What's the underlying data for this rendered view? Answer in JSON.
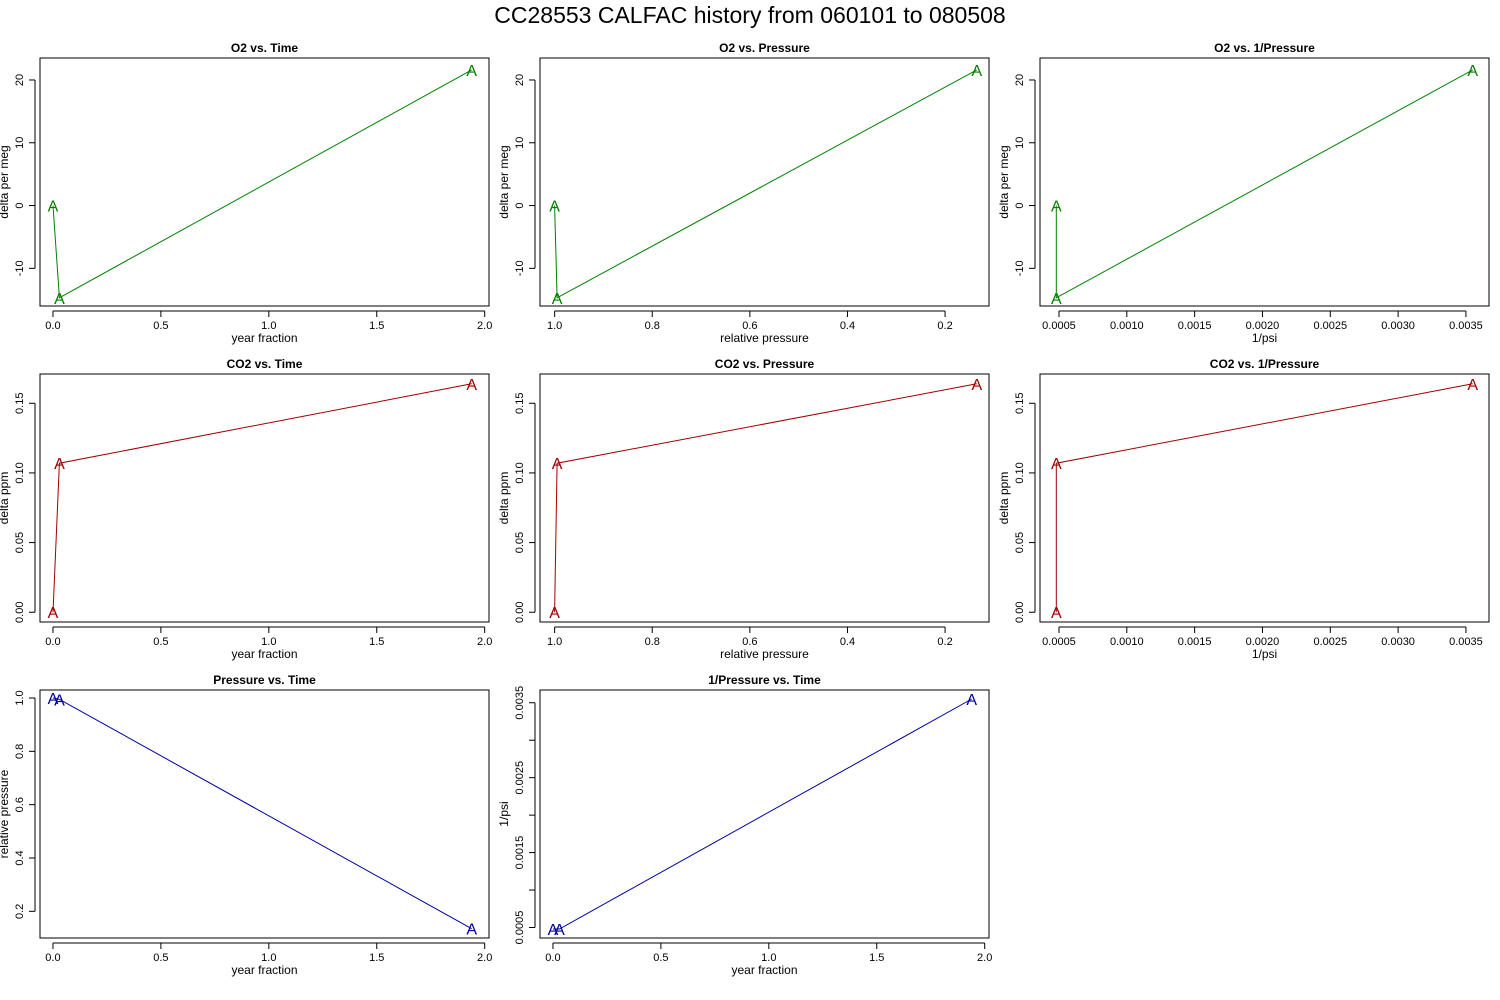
{
  "title": "CC28553   CALFAC history from  060101  to  080508",
  "colors": {
    "o2": "#008000",
    "co2": "#a00000",
    "pressure": "#0000a0",
    "axis": "#000000"
  },
  "marker_label": "A",
  "chart_data": [
    {
      "type": "line",
      "title": "O2 vs. Time",
      "xlabel": "year fraction",
      "ylabel": "delta per meg",
      "color_key": "o2",
      "x": [
        0.0,
        0.03,
        1.94
      ],
      "y": [
        0.0,
        -14.7,
        21.6
      ],
      "xlim": [
        -0.06,
        2.02
      ],
      "ylim": [
        -16,
        23.5
      ],
      "x_reversed": false,
      "xticks": [
        0.0,
        0.5,
        1.0,
        1.5,
        2.0
      ],
      "xtick_labels": [
        "0.0",
        "0.5",
        "1.0",
        "1.5",
        "2.0"
      ],
      "yticks": [
        -10,
        0,
        10,
        20
      ],
      "ytick_labels": [
        "-10",
        "0",
        "10",
        "20"
      ]
    },
    {
      "type": "line",
      "title": "O2 vs. Pressure",
      "xlabel": "relative pressure",
      "ylabel": "delta per meg",
      "color_key": "o2",
      "x": [
        1.0,
        0.995,
        0.135
      ],
      "y": [
        0.0,
        -14.7,
        21.6
      ],
      "xlim": [
        1.03,
        0.11
      ],
      "ylim": [
        -16,
        23.5
      ],
      "x_reversed": true,
      "xticks": [
        1.0,
        0.8,
        0.6,
        0.4,
        0.2
      ],
      "xtick_labels": [
        "1.0",
        "0.8",
        "0.6",
        "0.4",
        "0.2"
      ],
      "yticks": [
        -10,
        0,
        10,
        20
      ],
      "ytick_labels": [
        "-10",
        "0",
        "10",
        "20"
      ]
    },
    {
      "type": "line",
      "title": "O2 vs. 1/Pressure",
      "xlabel": "1/psi",
      "ylabel": "delta per meg",
      "color_key": "o2",
      "x": [
        0.00048,
        0.00048,
        0.00355
      ],
      "y": [
        0.0,
        -14.7,
        21.6
      ],
      "xlim": [
        0.00036,
        0.00367
      ],
      "ylim": [
        -16,
        23.5
      ],
      "x_reversed": false,
      "xticks": [
        0.0005,
        0.001,
        0.0015,
        0.002,
        0.0025,
        0.003,
        0.0035
      ],
      "xtick_labels": [
        "0.0005",
        "0.0010",
        "0.0015",
        "0.0020",
        "0.0025",
        "0.0030",
        "0.0035"
      ],
      "yticks": [
        -10,
        0,
        10,
        20
      ],
      "ytick_labels": [
        "-10",
        "0",
        "10",
        "20"
      ]
    },
    {
      "type": "line",
      "title": "CO2 vs. Time",
      "xlabel": "year fraction",
      "ylabel": "delta ppm",
      "color_key": "co2",
      "x": [
        0.0,
        0.03,
        1.94
      ],
      "y": [
        0.0,
        0.107,
        0.164
      ],
      "xlim": [
        -0.06,
        2.02
      ],
      "ylim": [
        -0.007,
        0.171
      ],
      "x_reversed": false,
      "xticks": [
        0.0,
        0.5,
        1.0,
        1.5,
        2.0
      ],
      "xtick_labels": [
        "0.0",
        "0.5",
        "1.0",
        "1.5",
        "2.0"
      ],
      "yticks": [
        0.0,
        0.05,
        0.1,
        0.15
      ],
      "ytick_labels": [
        "0.00",
        "0.05",
        "0.10",
        "0.15"
      ]
    },
    {
      "type": "line",
      "title": "CO2 vs. Pressure",
      "xlabel": "relative pressure",
      "ylabel": "delta ppm",
      "color_key": "co2",
      "x": [
        1.0,
        0.995,
        0.135
      ],
      "y": [
        0.0,
        0.107,
        0.164
      ],
      "xlim": [
        1.03,
        0.11
      ],
      "ylim": [
        -0.007,
        0.171
      ],
      "x_reversed": true,
      "xticks": [
        1.0,
        0.8,
        0.6,
        0.4,
        0.2
      ],
      "xtick_labels": [
        "1.0",
        "0.8",
        "0.6",
        "0.4",
        "0.2"
      ],
      "yticks": [
        0.0,
        0.05,
        0.1,
        0.15
      ],
      "ytick_labels": [
        "0.00",
        "0.05",
        "0.10",
        "0.15"
      ]
    },
    {
      "type": "line",
      "title": "CO2 vs. 1/Pressure",
      "xlabel": "1/psi",
      "ylabel": "delta ppm",
      "color_key": "co2",
      "x": [
        0.00048,
        0.00048,
        0.00355
      ],
      "y": [
        0.0,
        0.107,
        0.164
      ],
      "xlim": [
        0.00036,
        0.00367
      ],
      "ylim": [
        -0.007,
        0.171
      ],
      "x_reversed": false,
      "xticks": [
        0.0005,
        0.001,
        0.0015,
        0.002,
        0.0025,
        0.003,
        0.0035
      ],
      "xtick_labels": [
        "0.0005",
        "0.0010",
        "0.0015",
        "0.0020",
        "0.0025",
        "0.0030",
        "0.0035"
      ],
      "yticks": [
        0.0,
        0.05,
        0.1,
        0.15
      ],
      "ytick_labels": [
        "0.00",
        "0.05",
        "0.10",
        "0.15"
      ]
    },
    {
      "type": "line",
      "title": "Pressure vs. Time",
      "xlabel": "year fraction",
      "ylabel": "relative pressure",
      "color_key": "pressure",
      "x": [
        0.0,
        0.03,
        1.94
      ],
      "y": [
        1.0,
        0.995,
        0.135
      ],
      "xlim": [
        -0.06,
        2.02
      ],
      "ylim": [
        0.1,
        1.03
      ],
      "x_reversed": false,
      "xticks": [
        0.0,
        0.5,
        1.0,
        1.5,
        2.0
      ],
      "xtick_labels": [
        "0.0",
        "0.5",
        "1.0",
        "1.5",
        "2.0"
      ],
      "yticks": [
        0.2,
        0.4,
        0.6,
        0.8,
        1.0
      ],
      "ytick_labels": [
        "0.2",
        "0.4",
        "0.6",
        "0.8",
        "1.0"
      ]
    },
    {
      "type": "line",
      "title": "1/Pressure vs. Time",
      "xlabel": "year fraction",
      "ylabel": "1/psi",
      "color_key": "pressure",
      "x": [
        0.0,
        0.03,
        1.94
      ],
      "y": [
        0.00048,
        0.00048,
        0.00355
      ],
      "xlim": [
        -0.06,
        2.02
      ],
      "ylim": [
        0.00036,
        0.00367
      ],
      "x_reversed": false,
      "xticks": [
        0.0,
        0.5,
        1.0,
        1.5,
        2.0
      ],
      "xtick_labels": [
        "0.0",
        "0.5",
        "1.0",
        "1.5",
        "2.0"
      ],
      "yticks": [
        0.0005,
        0.001,
        0.0015,
        0.002,
        0.0025,
        0.003,
        0.0035
      ],
      "ytick_labels": [
        "0.0005",
        "",
        "0.0015",
        "",
        "0.0025",
        "",
        "0.0035"
      ]
    }
  ]
}
